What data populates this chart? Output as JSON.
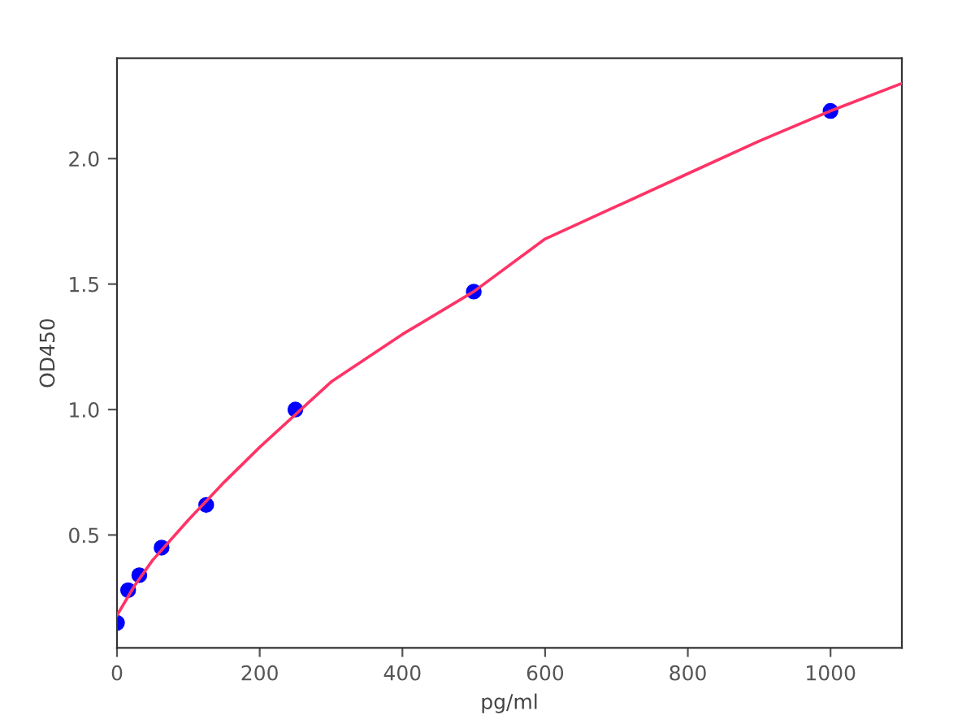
{
  "chart_data": {
    "type": "scatter",
    "xlabel": "pg/ml",
    "ylabel": "OD450",
    "xlim": [
      0,
      1100
    ],
    "ylim": [
      0.05,
      2.4
    ],
    "xticks": [
      0,
      200,
      400,
      600,
      800,
      1000
    ],
    "yticks": [
      0.5,
      {
        "value": 1.0,
        "label": "1.0"
      },
      1.5,
      {
        "value": 2.0,
        "label": "2.0"
      }
    ],
    "grid": false,
    "legend": false,
    "series": [
      {
        "color": "#0000ff",
        "marker": "circle",
        "x": [
          0,
          15.6,
          31.25,
          62.5,
          125,
          250,
          500,
          1000
        ],
        "values": [
          0.15,
          0.28,
          0.34,
          0.45,
          0.62,
          1.0,
          1.47,
          2.19
        ]
      },
      {
        "type": "line",
        "color": "#ff3366",
        "marker": "none",
        "line_style": "solid",
        "x": [
          0,
          25,
          50,
          100,
          150,
          200,
          300,
          400,
          500,
          600,
          700,
          800,
          900,
          1000,
          1100
        ],
        "values": [
          0.18,
          0.3,
          0.4,
          0.56,
          0.71,
          0.85,
          1.11,
          1.3,
          1.47,
          1.68,
          1.81,
          1.94,
          2.07,
          2.19,
          2.3
        ]
      }
    ]
  }
}
